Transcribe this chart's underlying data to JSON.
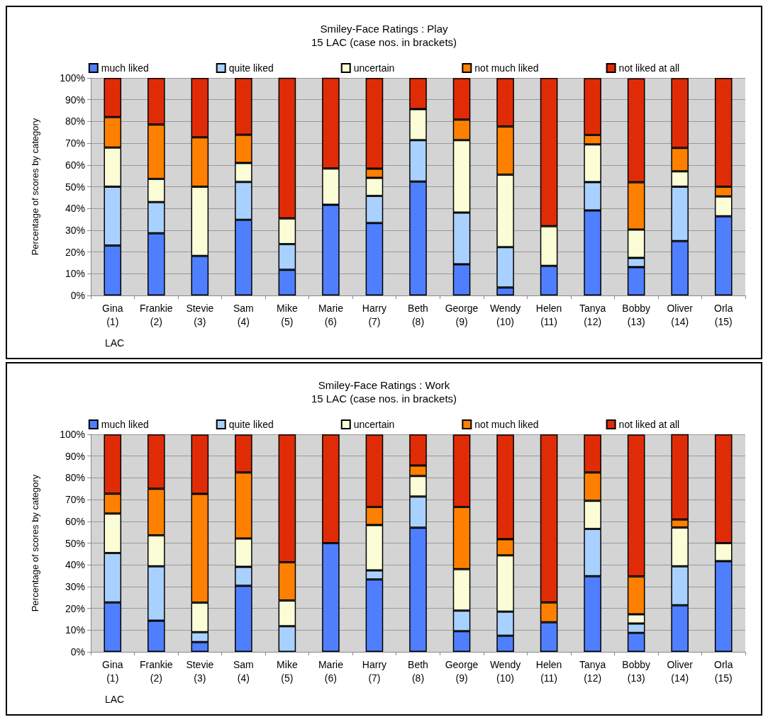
{
  "chart_data": [
    {
      "type": "bar",
      "title": "Smiley-Face Ratings : Play",
      "subtitle": "15 LAC (case nos. in brackets)",
      "xlabel": "LAC",
      "ylabel": "Percentage of scores by category",
      "stacked": true,
      "grid": "y",
      "legend": "top",
      "categories": [
        "Gina\n(1)",
        "Frankie\n(2)",
        "Stevie\n(3)",
        "Sam\n(4)",
        "Mike\n(5)",
        "Marie\n(6)",
        "Harry\n(7)",
        "Beth\n(8)",
        "George\n(9)",
        "Wendy\n(10)",
        "Helen\n(11)",
        "Tanya\n(12)",
        "Bobby\n(13)",
        "Oliver\n(14)",
        "Orla\n(15)"
      ],
      "ylim": [
        0,
        100
      ],
      "yticks": [
        {
          "value": 0,
          "label": "0%"
        },
        {
          "value": 10,
          "label": "10%"
        },
        {
          "value": 20,
          "label": "20%"
        },
        {
          "value": 30,
          "label": "30%"
        },
        {
          "value": 40,
          "label": "40%"
        },
        {
          "value": 50,
          "label": "50%"
        },
        {
          "value": 60,
          "label": "60%"
        },
        {
          "value": 70,
          "label": "70%"
        },
        {
          "value": 80,
          "label": "80%"
        },
        {
          "value": 90,
          "label": "90%"
        },
        {
          "value": 100,
          "label": "100%"
        }
      ],
      "series": [
        {
          "name": "much liked",
          "color": "#4f7fff",
          "values": [
            23,
            28.6,
            18.2,
            34.8,
            11.8,
            41.7,
            33.3,
            52.4,
            14.3,
            3.7,
            13.6,
            39.1,
            13,
            25,
            36.4
          ]
        },
        {
          "name": "quite liked",
          "color": "#a9d1ff",
          "values": [
            27,
            14.3,
            0,
            17.4,
            11.8,
            0,
            12.5,
            19,
            23.8,
            18.5,
            0,
            13,
            4.3,
            25,
            0
          ]
        },
        {
          "name": "uncertain",
          "color": "#fafdd6",
          "values": [
            18,
            10.7,
            31.8,
            8.7,
            11.8,
            16.7,
            8.3,
            14.3,
            33.3,
            33.3,
            18.2,
            17.4,
            13,
            7.1,
            9.1
          ]
        },
        {
          "name": "not much liked",
          "color": "#ff8000",
          "values": [
            14,
            25,
            22.7,
            13,
            0,
            0,
            4.2,
            0,
            9.5,
            22.2,
            0,
            4.3,
            21.7,
            10.7,
            4.5
          ]
        },
        {
          "name": "not liked at all",
          "color": "#e02c06",
          "values": [
            18,
            21.4,
            27.3,
            26.1,
            64.7,
            41.7,
            41.7,
            14.3,
            19,
            22.2,
            68.2,
            26.1,
            47.8,
            32.1,
            50
          ]
        }
      ]
    },
    {
      "type": "bar",
      "title": "Smiley-Face Ratings : Work",
      "subtitle": "15 LAC (case nos. in brackets)",
      "xlabel": "LAC",
      "ylabel": "Percentage of scores by category",
      "stacked": true,
      "grid": "y",
      "legend": "top",
      "categories": [
        "Gina\n(1)",
        "Frankie\n(2)",
        "Stevie\n(3)",
        "Sam\n(4)",
        "Mike\n(5)",
        "Marie\n(6)",
        "Harry\n(7)",
        "Beth\n(8)",
        "George\n(9)",
        "Wendy\n(10)",
        "Helen\n(11)",
        "Tanya\n(12)",
        "Bobby\n(13)",
        "Oliver\n(14)",
        "Orla\n(15)"
      ],
      "ylim": [
        0,
        100
      ],
      "yticks": [
        {
          "value": 0,
          "label": "0%"
        },
        {
          "value": 10,
          "label": "10%"
        },
        {
          "value": 20,
          "label": "20%"
        },
        {
          "value": 30,
          "label": "30%"
        },
        {
          "value": 40,
          "label": "40%"
        },
        {
          "value": 50,
          "label": "50%"
        },
        {
          "value": 60,
          "label": "60%"
        },
        {
          "value": 70,
          "label": "70%"
        },
        {
          "value": 80,
          "label": "80%"
        },
        {
          "value": 90,
          "label": "90%"
        },
        {
          "value": 100,
          "label": "100%"
        }
      ],
      "series": [
        {
          "name": "much liked",
          "color": "#4f7fff",
          "values": [
            22.7,
            14.3,
            4.5,
            30.4,
            0,
            50,
            33.3,
            57.1,
            9.5,
            7.4,
            13.6,
            34.8,
            8.7,
            21.4,
            41.7
          ]
        },
        {
          "name": "quite liked",
          "color": "#a9d1ff",
          "values": [
            22.7,
            25,
            4.5,
            8.7,
            11.8,
            0,
            4.2,
            14.3,
            9.5,
            11.1,
            0,
            21.7,
            4.3,
            17.9,
            0
          ]
        },
        {
          "name": "uncertain",
          "color": "#fafdd6",
          "values": [
            18.2,
            14.3,
            13.6,
            13,
            11.8,
            0,
            20.8,
            9.5,
            19,
            25.9,
            0,
            13,
            4.3,
            17.9,
            8.3
          ]
        },
        {
          "name": "not much liked",
          "color": "#ff8000",
          "values": [
            9.1,
            21.4,
            50,
            30.4,
            17.6,
            0,
            8.3,
            4.8,
            28.6,
            7.4,
            9.1,
            13,
            17.4,
            3.6,
            0
          ]
        },
        {
          "name": "not liked at all",
          "color": "#e02c06",
          "values": [
            27.3,
            25,
            27.3,
            17.4,
            58.8,
            50,
            33.3,
            14.3,
            33.3,
            48.1,
            77.3,
            17.4,
            65.2,
            39.3,
            50
          ]
        }
      ]
    }
  ]
}
